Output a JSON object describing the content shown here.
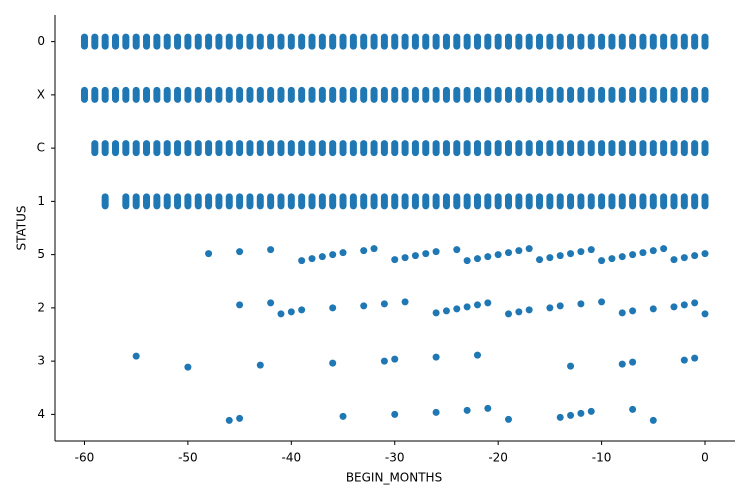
{
  "chart_data": {
    "type": "strip",
    "color": "#1f77b4",
    "x_label": "BEGIN_MONTHS",
    "y_label": "STATUS",
    "xlim": [
      -62.85,
      2.9
    ],
    "xticks": [
      -60,
      -50,
      -40,
      -30,
      -20,
      -10,
      0
    ],
    "categories": [
      "0",
      "X",
      "C",
      "1",
      "5",
      "2",
      "3",
      "4"
    ],
    "x": [
      [
        -60,
        -59,
        -58,
        -57,
        -56,
        -55,
        -54,
        -53,
        -52,
        -51,
        -50,
        -49,
        -48,
        -47,
        -46,
        -45,
        -44,
        -43,
        -42,
        -41,
        -40,
        -39,
        -38,
        -37,
        -36,
        -35,
        -34,
        -33,
        -32,
        -31,
        -30,
        -29,
        -28,
        -27,
        -26,
        -25,
        -24,
        -23,
        -22,
        -21,
        -20,
        -19,
        -18,
        -17,
        -16,
        -15,
        -14,
        -13,
        -12,
        -11,
        -10,
        -9,
        -8,
        -7,
        -6,
        -5,
        -4,
        -3,
        -2,
        -1,
        0
      ],
      [
        -60,
        -59,
        -58,
        -57,
        -56,
        -55,
        -54,
        -53,
        -52,
        -51,
        -50,
        -49,
        -48,
        -47,
        -46,
        -45,
        -44,
        -43,
        -42,
        -41,
        -40,
        -39,
        -38,
        -37,
        -36,
        -35,
        -34,
        -33,
        -32,
        -31,
        -30,
        -29,
        -28,
        -27,
        -26,
        -25,
        -24,
        -23,
        -22,
        -21,
        -20,
        -19,
        -18,
        -17,
        -16,
        -15,
        -14,
        -13,
        -12,
        -11,
        -10,
        -9,
        -8,
        -7,
        -6,
        -5,
        -4,
        -3,
        -2,
        -1,
        0
      ],
      [
        -59,
        -58,
        -57,
        -56,
        -55,
        -54,
        -53,
        -52,
        -51,
        -50,
        -49,
        -48,
        -47,
        -46,
        -45,
        -44,
        -43,
        -42,
        -41,
        -40,
        -39,
        -38,
        -37,
        -36,
        -35,
        -34,
        -33,
        -32,
        -31,
        -30,
        -29,
        -28,
        -27,
        -26,
        -25,
        -24,
        -23,
        -22,
        -21,
        -20,
        -19,
        -18,
        -17,
        -16,
        -15,
        -14,
        -13,
        -12,
        -11,
        -10,
        -9,
        -8,
        -7,
        -6,
        -5,
        -4,
        -3,
        -2,
        -1,
        0
      ],
      [
        -58,
        -56,
        -55,
        -54,
        -53,
        -52,
        -51,
        -50,
        -49,
        -48,
        -47,
        -46,
        -45,
        -44,
        -43,
        -42,
        -41,
        -40,
        -39,
        -38,
        -37,
        -36,
        -35,
        -34,
        -33,
        -32,
        -31,
        -30,
        -29,
        -28,
        -27,
        -26,
        -25,
        -24,
        -23,
        -22,
        -21,
        -20,
        -19,
        -18,
        -17,
        -16,
        -15,
        -14,
        -13,
        -12,
        -11,
        -10,
        -9,
        -8,
        -7,
        -6,
        -5,
        -4,
        -3,
        -2,
        -1,
        0
      ],
      [
        -48,
        -45,
        -42,
        -39,
        -38,
        -37,
        -36,
        -35,
        -33,
        -32,
        -30,
        -29,
        -28,
        -27,
        -26,
        -24,
        -23,
        -22,
        -21,
        -20,
        -19,
        -18,
        -17,
        -16,
        -15,
        -14,
        -13,
        -12,
        -11,
        -10,
        -9,
        -8,
        -7,
        -6,
        -5,
        -4,
        -3,
        -2,
        -1,
        0
      ],
      [
        -45,
        -42,
        -41,
        -40,
        -39,
        -36,
        -33,
        -31,
        -29,
        -26,
        -25,
        -24,
        -23,
        -22,
        -21,
        -19,
        -18,
        -17,
        -15,
        -14,
        -12,
        -10,
        -8,
        -7,
        -5,
        -3,
        -2,
        -1,
        0
      ],
      [
        -55,
        -50,
        -43,
        -36,
        -31,
        -30,
        -26,
        -22,
        -13,
        -8,
        -7,
        -2,
        -1
      ],
      [
        -46,
        -45,
        -35,
        -30,
        -26,
        -23,
        -21,
        -19,
        -14,
        -13,
        -12,
        -11,
        -7,
        -5
      ]
    ]
  }
}
